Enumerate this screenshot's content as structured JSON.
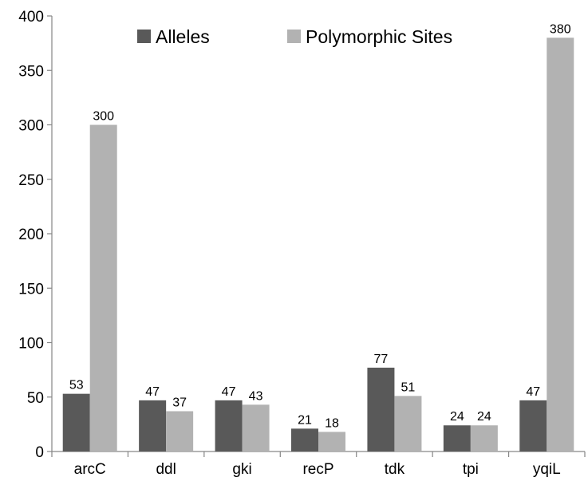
{
  "chart_data": {
    "type": "bar",
    "categories": [
      "arcC",
      "ddl",
      "gki",
      "recP",
      "tdk",
      "tpi",
      "yqiL"
    ],
    "series": [
      {
        "name": "Alleles",
        "color": "#595959",
        "values": [
          53,
          47,
          47,
          21,
          77,
          24,
          47
        ]
      },
      {
        "name": "Polymorphic Sites",
        "color": "#b2b2b2",
        "values": [
          300,
          37,
          43,
          18,
          51,
          24,
          380
        ]
      }
    ],
    "title": "",
    "xlabel": "",
    "ylabel": "",
    "ylim": [
      0,
      400
    ],
    "yticks": [
      0,
      50,
      100,
      150,
      200,
      250,
      300,
      350,
      400
    ],
    "grid": false,
    "legend_position": "top-center",
    "data_labels": true
  }
}
